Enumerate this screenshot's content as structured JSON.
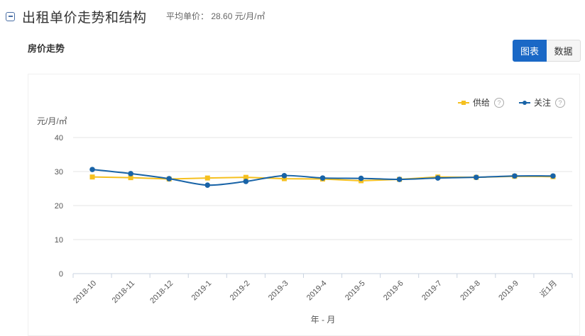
{
  "header": {
    "title": "出租单价走势和结构",
    "avg_price_label": "平均单价：",
    "avg_price_value": "28.60",
    "avg_price_unit": "元/月/㎡"
  },
  "section": {
    "subtitle": "房价走势"
  },
  "view_toggle": {
    "chart_label": "图表",
    "data_label": "数据",
    "active": "图表"
  },
  "legend": {
    "items": [
      {
        "label": "供给",
        "color": "#f5c01f",
        "marker": "square"
      },
      {
        "label": "关注",
        "color": "#1863a7",
        "marker": "circle"
      }
    ]
  },
  "chart_data": {
    "type": "line",
    "title": "房价走势",
    "xlabel": "年 - 月",
    "ylabel": "元/月/㎡",
    "ylim": [
      0,
      40
    ],
    "yticks": [
      0,
      10,
      20,
      30,
      40
    ],
    "grid": true,
    "legend_position": "top-right",
    "categories": [
      "2018-10",
      "2018-11",
      "2018-12",
      "2019-1",
      "2019-2",
      "2019-3",
      "2019-4",
      "2019-5",
      "2019-6",
      "2019-7",
      "2019-8",
      "2019-9",
      "近1月"
    ],
    "series": [
      {
        "name": "供给",
        "color": "#f5c01f",
        "values": [
          28.4,
          28.2,
          27.8,
          28.1,
          28.3,
          27.9,
          27.8,
          27.3,
          27.7,
          28.4,
          28.3,
          28.6,
          28.5
        ]
      },
      {
        "name": "关注",
        "color": "#1863a7",
        "values": [
          30.6,
          29.4,
          27.9,
          26.0,
          27.1,
          28.8,
          28.1,
          28.0,
          27.7,
          28.1,
          28.3,
          28.7,
          28.7
        ]
      }
    ]
  }
}
